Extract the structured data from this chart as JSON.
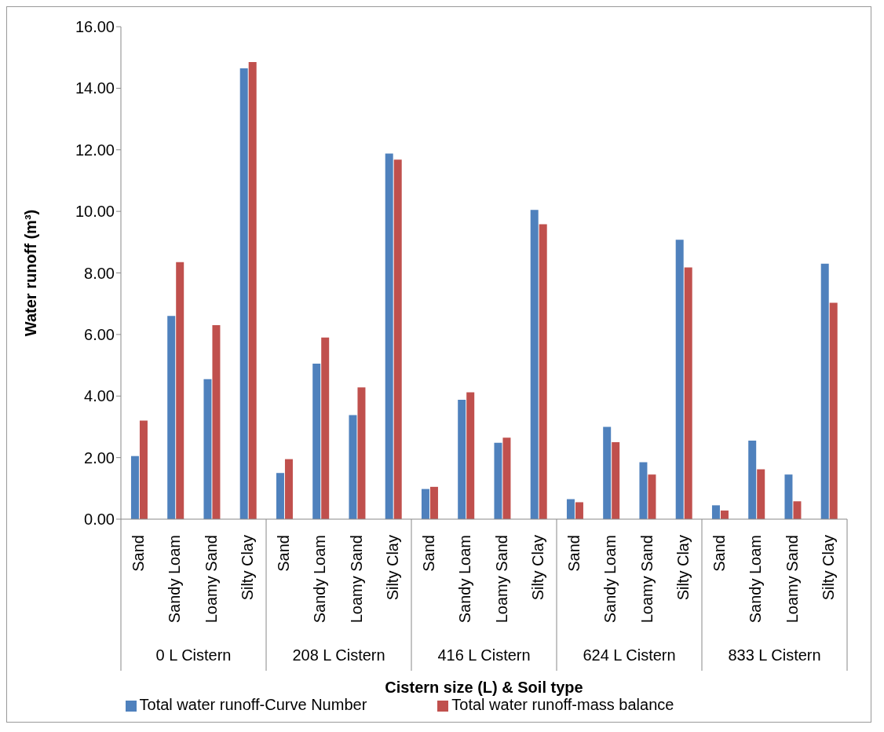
{
  "chart_data": {
    "type": "bar",
    "xlabel": "Cistern size (L) & Soil type",
    "ylabel": "Water runoff (m³)",
    "categories": [
      "Sand",
      "Sandy Loam",
      "Loamy Sand",
      "Silty Clay",
      "Sand",
      "Sandy Loam",
      "Loamy Sand",
      "Silty Clay",
      "Sand",
      "Sandy Loam",
      "Loamy Sand",
      "Silty Clay",
      "Sand",
      "Sandy Loam",
      "Loamy Sand",
      "Silty Clay",
      "Sand",
      "Sandy Loam",
      "Loamy Sand",
      "Silty Clay"
    ],
    "annotations": [
      "0 L Cistern",
      "208 L Cistern",
      "416 L Cistern",
      "624 L Cistern",
      "833 L Cistern"
    ],
    "series": [
      {
        "name": "Total water runoff-Curve Number",
        "color": "#4f81bd",
        "values": [
          2.05,
          6.6,
          4.55,
          14.65,
          1.5,
          5.05,
          3.38,
          11.88,
          0.98,
          3.88,
          2.48,
          10.05,
          0.65,
          3.0,
          1.85,
          9.08,
          0.45,
          2.55,
          1.45,
          8.3
        ]
      },
      {
        "name": "Total water runoff-mass balance",
        "color": "#c0504d",
        "values": [
          3.2,
          8.35,
          6.3,
          14.85,
          1.95,
          5.9,
          4.28,
          11.68,
          1.05,
          4.12,
          2.65,
          9.58,
          0.55,
          2.5,
          1.45,
          8.18,
          0.28,
          1.62,
          0.58,
          7.03
        ]
      }
    ],
    "ylim": [
      0,
      16
    ],
    "yticks": [
      {
        "value": 0,
        "label": "0.00"
      },
      {
        "value": 2,
        "label": "2.00"
      },
      {
        "value": 4,
        "label": "4.00"
      },
      {
        "value": 6,
        "label": "6.00"
      },
      {
        "value": 8,
        "label": "8.00"
      },
      {
        "value": 10,
        "label": "10.00"
      },
      {
        "value": 12,
        "label": "12.00"
      },
      {
        "value": 14,
        "label": "14.00"
      },
      {
        "value": 16,
        "label": "16.00"
      }
    ],
    "grid": false,
    "legend": "bottom"
  }
}
